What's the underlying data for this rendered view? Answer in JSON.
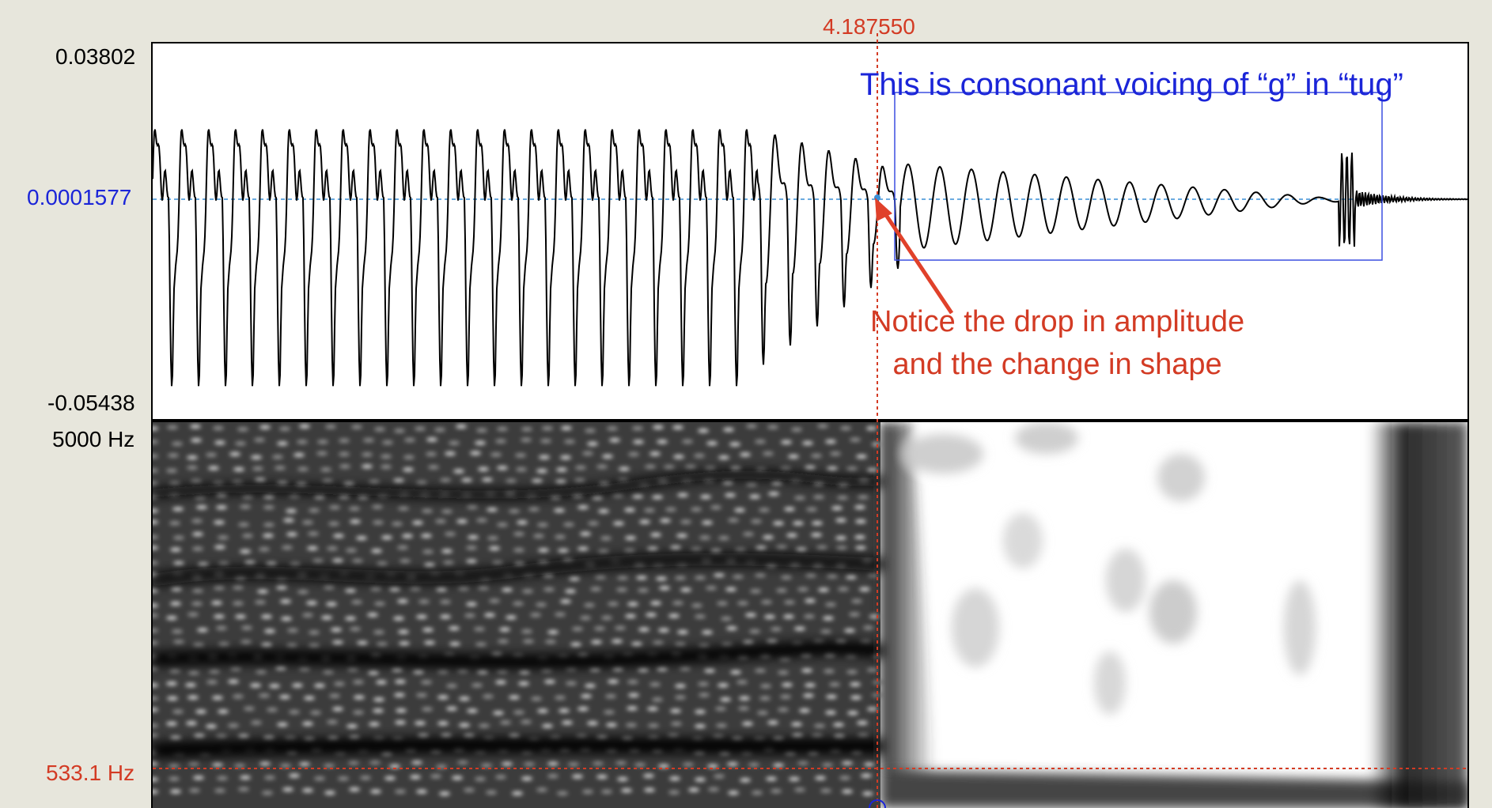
{
  "waveform": {
    "y_max_label": "0.03802",
    "y_zero_label": "0.0001577",
    "y_min_label": "-0.05438",
    "zero_line_color": "#3a8fd6"
  },
  "spectrogram": {
    "y_max_label": "5000 Hz",
    "cursor_freq_label": "533.1 Hz"
  },
  "cursor": {
    "time_label": "4.187550",
    "color": "#d33b24"
  },
  "annotations": {
    "voicing_note": "This is consonant voicing of “g” in “tug”",
    "notice_line1": "Notice the drop in amplitude",
    "notice_line2": "and the change in shape",
    "box_color": "#1b25d8",
    "arrow_color": "#e0412a"
  },
  "colors": {
    "background": "#e7e6dc",
    "waveform_stroke": "#000000"
  }
}
